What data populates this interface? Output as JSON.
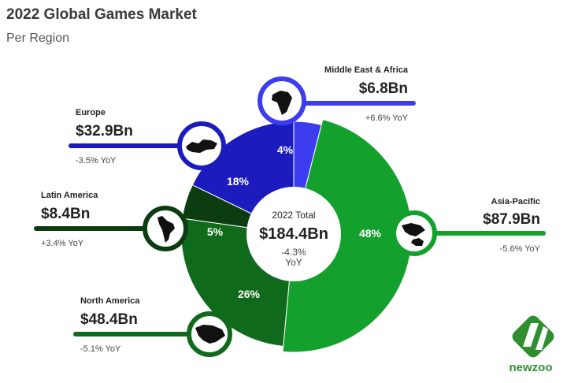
{
  "header": {
    "title": "2022 Global Games Market",
    "subtitle": "Per Region"
  },
  "total": {
    "label": "2022 Total",
    "value": "$184.4Bn",
    "yoy": "-4.3%",
    "yoy_unit": "YoY"
  },
  "regions": [
    {
      "name": "Middle East & Africa",
      "value": "$6.8Bn",
      "yoy": "+6.6% YoY",
      "share": "4%",
      "icon": "africa-map-icon"
    },
    {
      "name": "Asia-Pacific",
      "value": "$87.9Bn",
      "yoy": "-5.6% YoY",
      "share": "48%",
      "icon": "asia-pacific-map-icon"
    },
    {
      "name": "North America",
      "value": "$48.4Bn",
      "yoy": "-5.1% YoY",
      "share": "26%",
      "icon": "north-america-map-icon"
    },
    {
      "name": "Latin America",
      "value": "$8.4Bn",
      "yoy": "+3.4% YoY",
      "share": "5%",
      "icon": "latin-america-map-icon"
    },
    {
      "name": "Europe",
      "value": "$32.9Bn",
      "yoy": "-3.5% YoY",
      "share": "18%",
      "icon": "europe-map-icon"
    }
  ],
  "brand": {
    "name": "newzoo"
  },
  "colors": {
    "middle_east_africa": "#3d3df0",
    "asia_pacific": "#14a02c",
    "north_america": "#0f6a1c",
    "latin_america": "#0c3d10",
    "europe": "#1c1cbe"
  },
  "chart_data": {
    "type": "pie",
    "title": "2022 Global Games Market",
    "subtitle": "Per Region",
    "categories": [
      "Middle East & Africa",
      "Asia-Pacific",
      "North America",
      "Latin America",
      "Europe"
    ],
    "values": [
      4,
      48,
      26,
      5,
      18
    ],
    "revenue_bn": [
      6.8,
      87.9,
      48.4,
      8.4,
      32.9
    ],
    "yoy_percent": [
      6.6,
      -5.6,
      -5.1,
      3.4,
      -3.5
    ],
    "total_bn": 184.4,
    "total_yoy_percent": -4.3
  }
}
